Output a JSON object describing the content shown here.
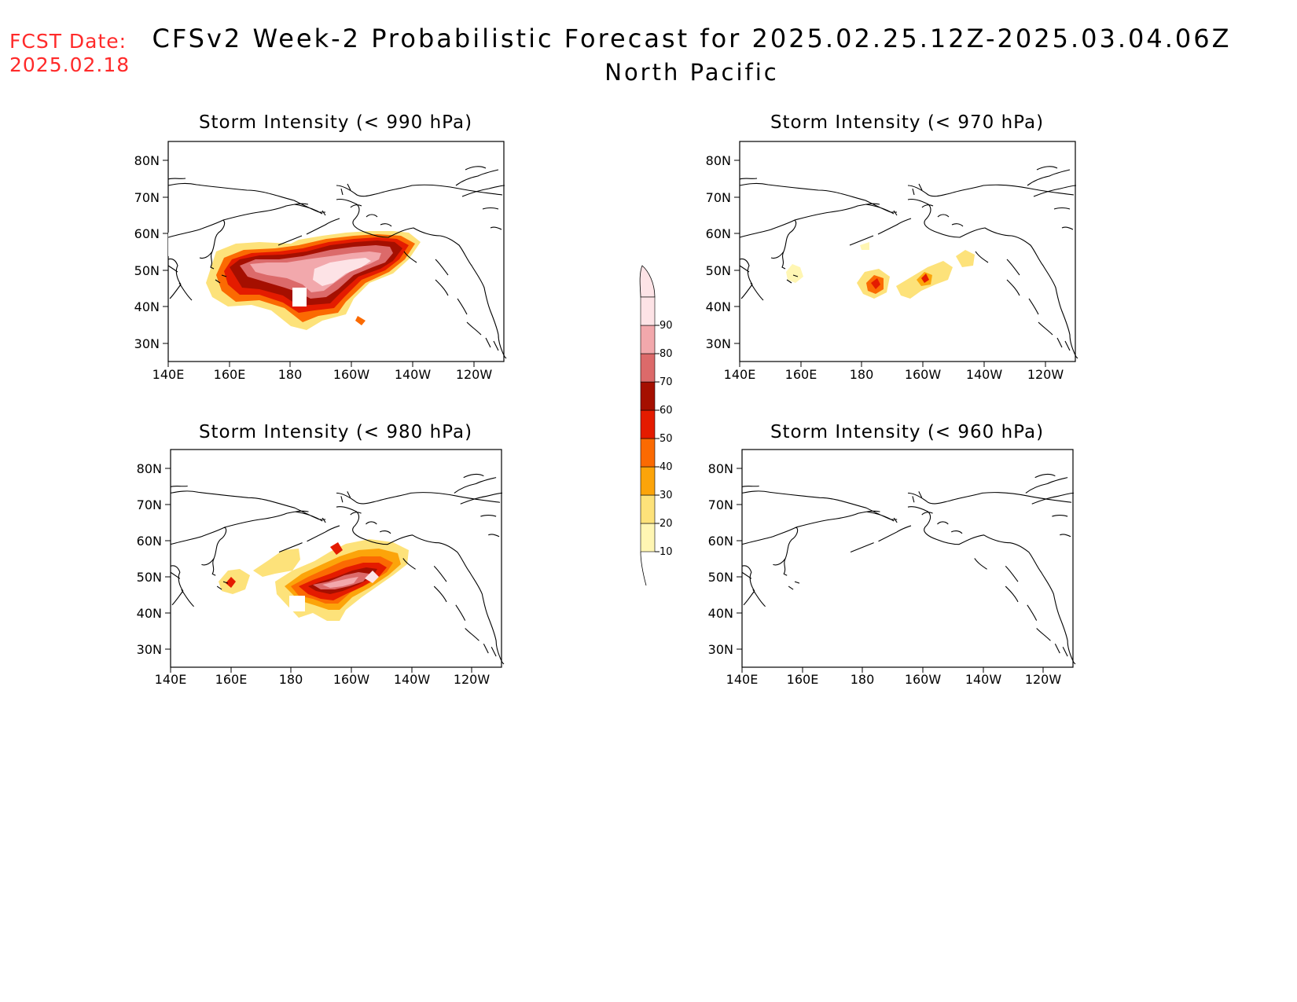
{
  "header": {
    "fcst_label": "FCST Date:",
    "fcst_date": "2025.02.18",
    "title": "CFSv2 Week-2 Probabilistic Forecast for 2025.02.25.12Z-2025.03.04.06Z",
    "subtitle": "North Pacific"
  },
  "axes": {
    "lon_labels": [
      "140E",
      "160E",
      "180",
      "160W",
      "140W",
      "120W"
    ],
    "lat_labels": [
      "80N",
      "70N",
      "60N",
      "50N",
      "40N",
      "30N"
    ]
  },
  "colorbar": {
    "levels": [
      "10",
      "20",
      "30",
      "40",
      "50",
      "60",
      "70",
      "80",
      "90"
    ],
    "colors": [
      "#fff6b3",
      "#fde27a",
      "#fca40a",
      "#fb6a02",
      "#e41b00",
      "#a50f00",
      "#dc6a6a",
      "#f2a8ac",
      "#fde3e6"
    ]
  },
  "panels": [
    {
      "title": "Storm Intensity (< 990 hPa)"
    },
    {
      "title": "Storm Intensity (< 970 hPa)"
    },
    {
      "title": "Storm Intensity (< 980 hPa)"
    },
    {
      "title": "Storm Intensity (< 960 hPa)"
    }
  ]
}
